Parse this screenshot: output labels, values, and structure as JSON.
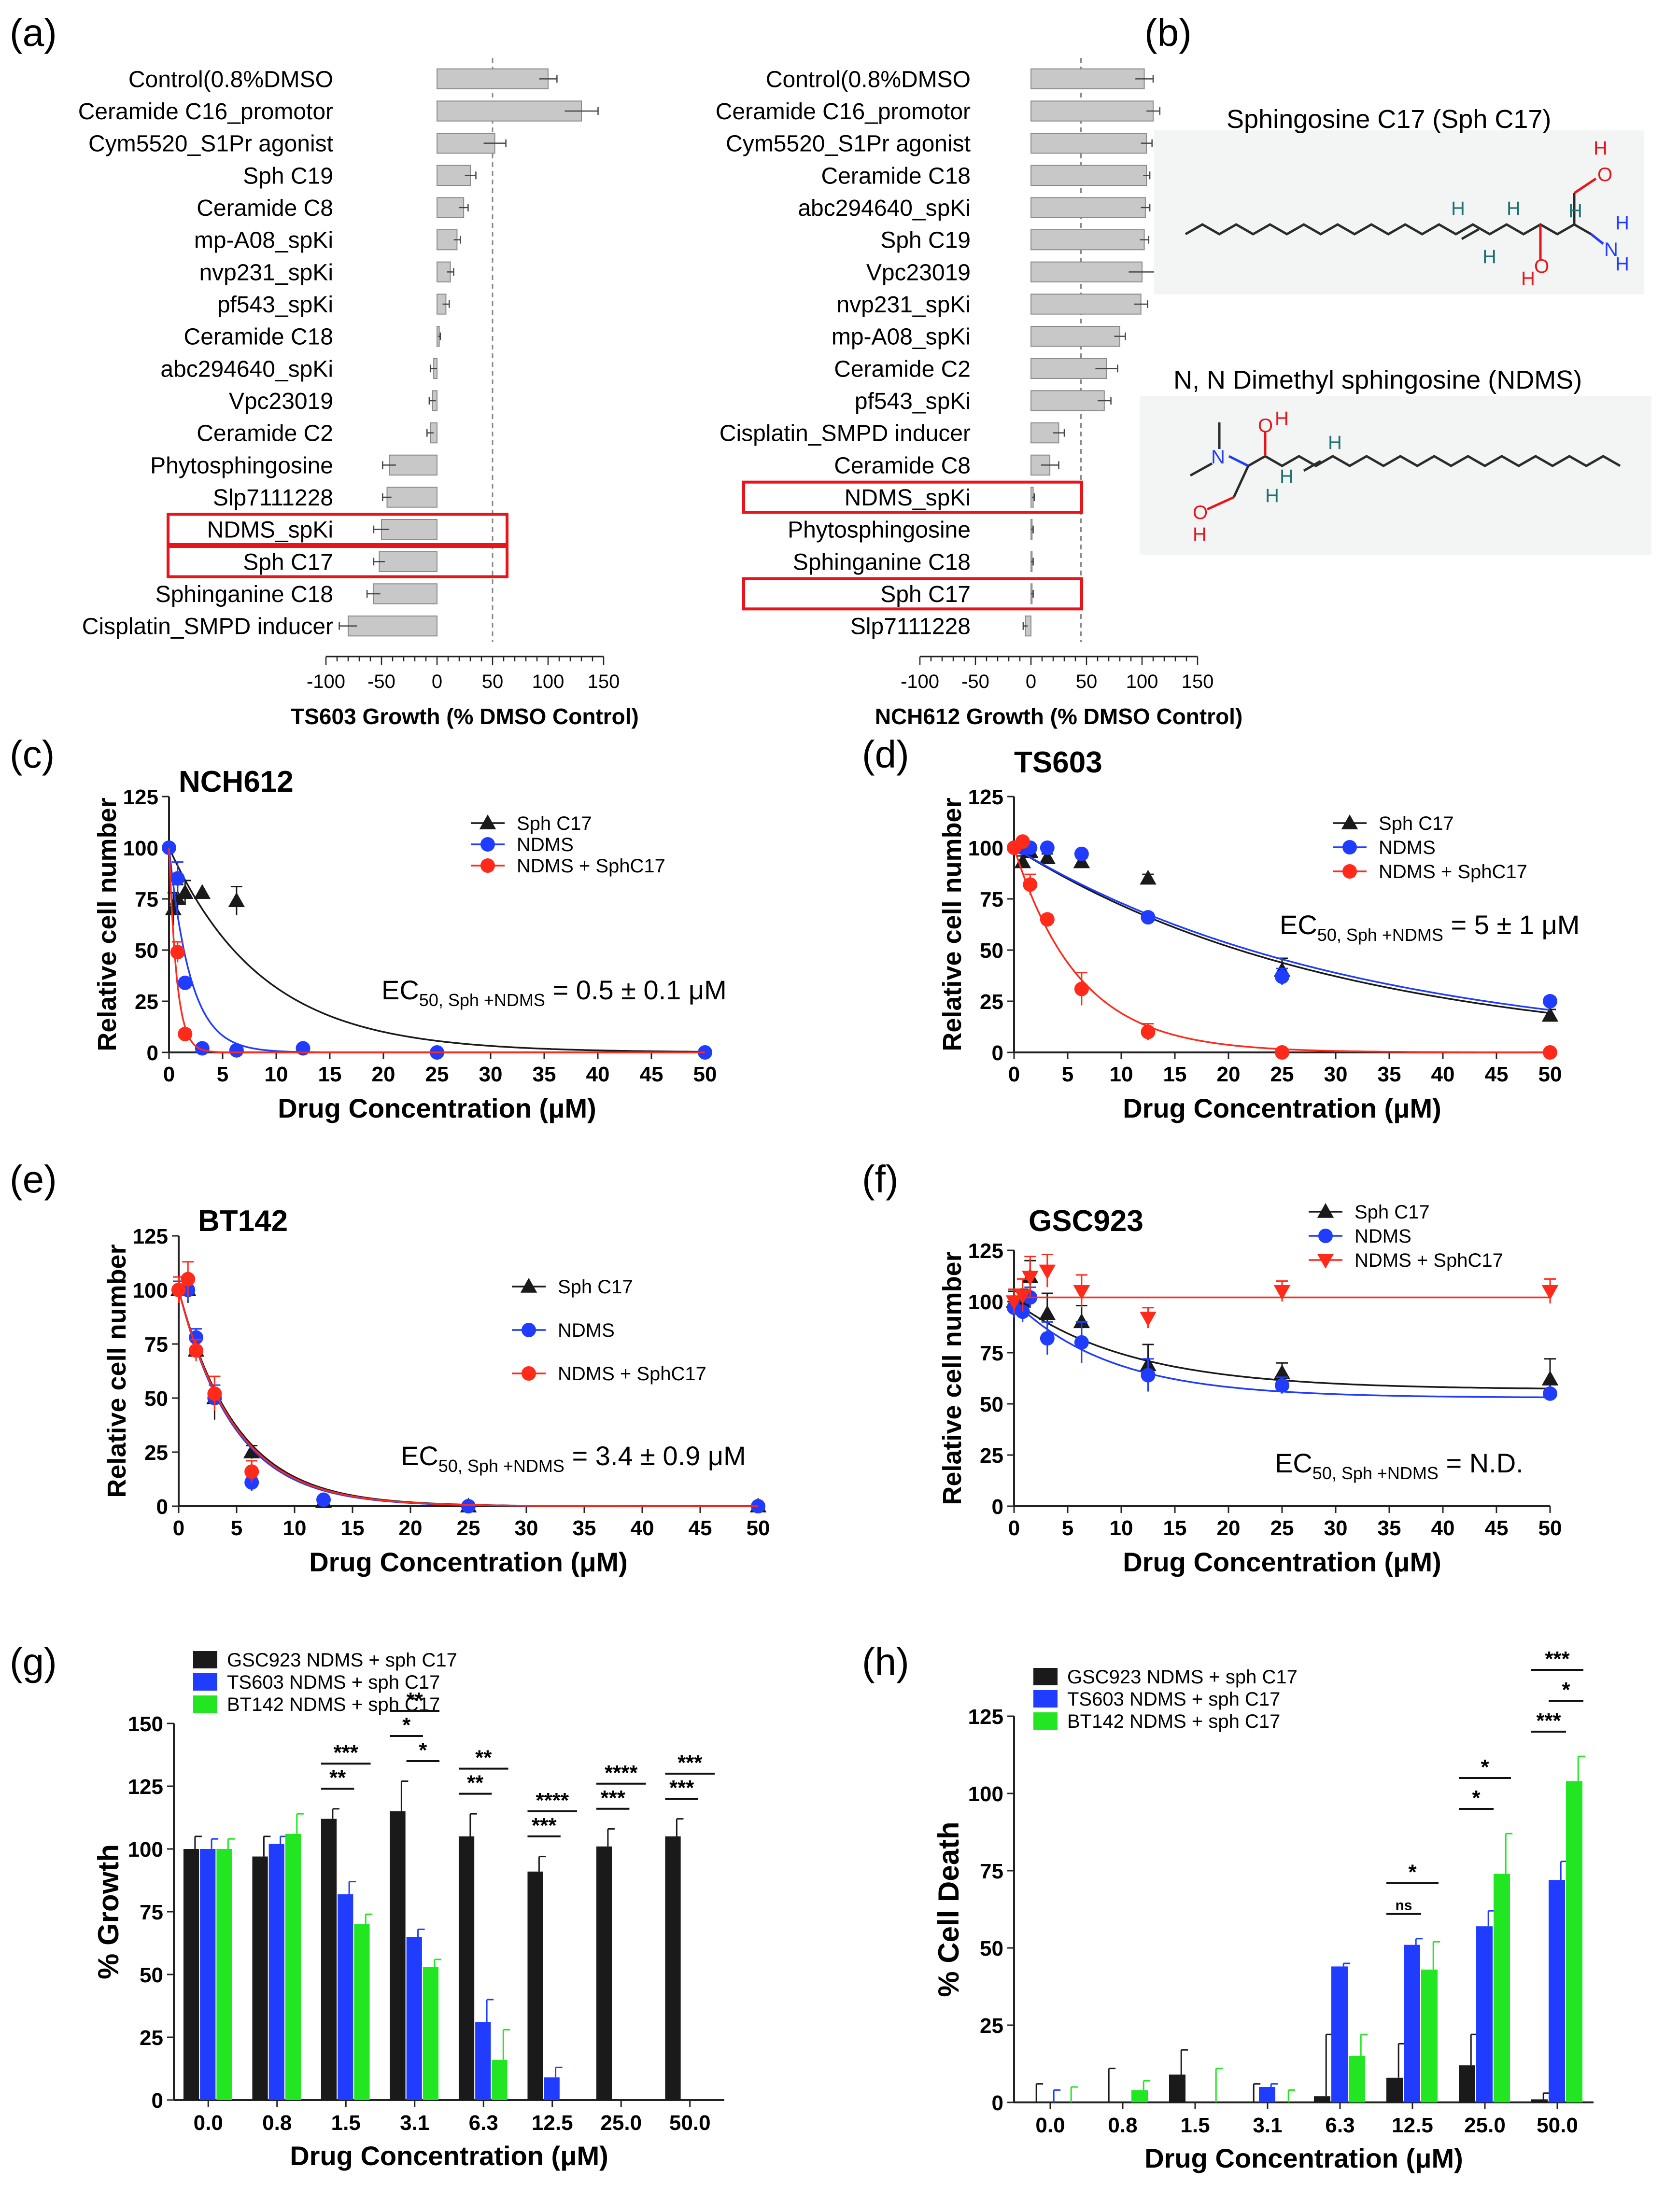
{
  "colors": {
    "bar_gray": "#c8c8c8",
    "black": "#1a1a1a",
    "blue": "#1f3cff",
    "red": "#ff2a1a",
    "green": "#22e622",
    "highlight": "#e8141a"
  },
  "panel_labels": {
    "a": "(a)",
    "b": "(b)",
    "c": "(c)",
    "d": "(d)",
    "e": "(e)",
    "f": "(f)",
    "g": "(g)",
    "h": "(h)"
  },
  "chart_data": [
    {
      "id": "a",
      "type": "bar",
      "orientation": "horizontal",
      "xlabel": "TS603 Growth (% DMSO Control)",
      "xlim": [
        -100,
        150
      ],
      "xticks": [
        -100,
        -50,
        0,
        50,
        100,
        150
      ],
      "reference_line": 50,
      "categories": [
        "Control(0.8%DMSO",
        "Ceramide C16_promotor",
        "Cym5520_S1Pr agonist",
        "Sph C19",
        "Ceramide C8",
        "mp-A08_spKi",
        "nvp231_spKi",
        "pf543_spKi",
        "Ceramide C18",
        "abc294640_spKi",
        "Vpc23019",
        "Ceramide C2",
        "Phytosphingosine",
        "Slp7111228",
        "NDMS_spKi",
        "Sph C17",
        "Sphinganine C18",
        "Cisplatin_SMPD inducer"
      ],
      "values": [
        100,
        130,
        52,
        30,
        24,
        18,
        12,
        8,
        2,
        -3,
        -4,
        -6,
        -43,
        -45,
        -50,
        -52,
        -57,
        -80
      ],
      "errors": [
        8,
        15,
        10,
        5,
        4,
        3,
        3,
        3,
        1,
        3,
        3,
        3,
        6,
        4,
        7,
        5,
        6,
        8
      ],
      "highlighted": [
        "NDMS_spKi",
        "Sph C17"
      ]
    },
    {
      "id": "a2",
      "type": "bar",
      "orientation": "horizontal",
      "xlabel": "NCH612 Growth (% DMSO Control)",
      "xlim": [
        -100,
        150
      ],
      "xticks": [
        -100,
        -50,
        0,
        50,
        100,
        150
      ],
      "reference_line": 45,
      "categories": [
        "Control(0.8%DMSO",
        "Ceramide C16_promotor",
        "Cym5520_S1Pr agonist",
        "Ceramide C18",
        "abc294640_spKi",
        "Sph C19",
        "Vpc23019",
        "nvp231_spKi",
        "mp-A08_spKi",
        "Ceramide C2",
        "pf543_spKi",
        "Cisplatin_SMPD inducer",
        "Ceramide C8",
        "NDMS_spKi",
        "Phytosphingosine",
        "Sphinganine C18",
        "Sph C17",
        "Slp7111228"
      ],
      "values": [
        102,
        110,
        104,
        104,
        103,
        102,
        100,
        99,
        80,
        68,
        66,
        25,
        17,
        2,
        1,
        1,
        1,
        -5
      ],
      "errors": [
        8,
        6,
        5,
        3,
        4,
        4,
        12,
        6,
        5,
        10,
        6,
        5,
        8,
        1,
        1,
        1,
        1,
        2
      ],
      "highlighted": [
        "NDMS_spKi",
        "Sph C17"
      ]
    },
    {
      "id": "c",
      "type": "scatter",
      "title": "NCH612",
      "xlabel": "Drug Concentration (μM)",
      "ylabel": "Relative cell number",
      "xlim": [
        0,
        50
      ],
      "ylim": [
        0,
        125
      ],
      "xticks": [
        0,
        5,
        10,
        15,
        20,
        25,
        30,
        35,
        40,
        45,
        50
      ],
      "yticks": [
        0,
        25,
        50,
        75,
        100,
        125
      ],
      "annotation": {
        "prefix": "EC",
        "sub": "50, Sph +NDMS",
        "suffix": " = 0.5 ± 0.1 μM"
      },
      "series": [
        {
          "name": "Sph C17",
          "color": "black",
          "marker": "triangle",
          "x": [
            0.4,
            0.8,
            1.5,
            3.1,
            6.3
          ],
          "y": [
            70,
            75,
            78,
            78,
            74
          ],
          "err": [
            8,
            7,
            6,
            0,
            7
          ],
          "fit_k": 0.115
        },
        {
          "name": "NDMS",
          "color": "blue",
          "marker": "circle",
          "x": [
            0,
            0.8,
            1.5,
            3.1,
            6.3,
            12.5,
            25,
            50
          ],
          "y": [
            100,
            85,
            34,
            2,
            1,
            2,
            0,
            0
          ],
          "err": [
            0,
            8,
            0,
            0,
            0,
            0,
            0,
            0
          ],
          "fit_k": 0.5
        },
        {
          "name": "NDMS + SphC17",
          "color": "red",
          "marker": "circle",
          "x": [
            0.8,
            1.5
          ],
          "y": [
            49,
            9
          ],
          "err": [
            5,
            2
          ],
          "fit_k": 1.4
        }
      ]
    },
    {
      "id": "d",
      "type": "scatter",
      "title": "TS603",
      "xlabel": "Drug Concentration (μM)",
      "ylabel": "Relative cell number",
      "xlim": [
        0,
        50
      ],
      "ylim": [
        0,
        125
      ],
      "xticks": [
        0,
        5,
        10,
        15,
        20,
        25,
        30,
        35,
        40,
        45,
        50
      ],
      "yticks": [
        0,
        25,
        50,
        75,
        100,
        125
      ],
      "annotation": {
        "prefix": "EC",
        "sub": "50, Sph +NDMS",
        "suffix": " = 5 ± 1 μM"
      },
      "series": [
        {
          "name": "Sph C17",
          "color": "black",
          "marker": "triangle",
          "x": [
            0.8,
            1.5,
            3.1,
            6.3,
            12.5,
            25,
            50
          ],
          "y": [
            93,
            98,
            95,
            93,
            85,
            40,
            18
          ],
          "err": [
            3,
            2,
            2,
            2,
            2,
            6,
            3
          ],
          "fit_k": 0.033
        },
        {
          "name": "NDMS",
          "color": "blue",
          "marker": "circle",
          "x": [
            0,
            0.8,
            1.5,
            3.1,
            6.3,
            12.5,
            25,
            50
          ],
          "y": [
            100,
            100,
            100,
            100,
            97,
            66,
            37,
            25
          ],
          "err": [
            0,
            2,
            2,
            2,
            2,
            2,
            4,
            2
          ],
          "fit_k": 0.0315
        },
        {
          "name": "NDMS + SphC17",
          "color": "red",
          "marker": "circle",
          "x": [
            0,
            0.8,
            1.5,
            3.1,
            6.3,
            12.5,
            25,
            50
          ],
          "y": [
            100,
            103,
            82,
            65,
            31,
            10,
            0,
            0
          ],
          "err": [
            0,
            0,
            5,
            0,
            8,
            4,
            0,
            0
          ],
          "fit_k": 0.165
        }
      ]
    },
    {
      "id": "e",
      "type": "scatter",
      "title": "BT142",
      "xlabel": "Drug Concentration (μM)",
      "ylabel": "Relative cell number",
      "xlim": [
        0,
        50
      ],
      "ylim": [
        0,
        125
      ],
      "xticks": [
        0,
        5,
        10,
        15,
        20,
        25,
        30,
        35,
        40,
        45,
        50
      ],
      "yticks": [
        0,
        25,
        50,
        75,
        100,
        125
      ],
      "annotation": {
        "prefix": "EC",
        "sub": "50, Sph +NDMS",
        "suffix": " = 3.4 ± 0.9 μM"
      },
      "series": [
        {
          "name": "Sph C17",
          "color": "black",
          "marker": "triangle",
          "x": [
            0,
            0.8,
            1.5,
            3.1,
            6.3,
            12.5,
            25,
            50
          ],
          "y": [
            100,
            100,
            72,
            50,
            25,
            2,
            0,
            0
          ],
          "err": [
            4,
            6,
            5,
            10,
            3,
            0,
            0,
            0
          ],
          "fit_k": 0.2
        },
        {
          "name": "NDMS",
          "color": "blue",
          "marker": "circle",
          "x": [
            0,
            0.8,
            1.5,
            3.1,
            6.3,
            12.5,
            25,
            50
          ],
          "y": [
            100,
            100,
            78,
            50,
            11,
            3,
            0,
            0
          ],
          "err": [
            4,
            5,
            4,
            6,
            4,
            0,
            0,
            0
          ],
          "fit_k": 0.21
        },
        {
          "name": "NDMS + SphC17",
          "color": "red",
          "marker": "circle",
          "x": [
            0,
            0.8,
            1.5,
            3.1,
            6.3
          ],
          "y": [
            100,
            105,
            72,
            52,
            16
          ],
          "err": [
            6,
            8,
            5,
            8,
            5
          ],
          "fit_k": 0.205
        }
      ]
    },
    {
      "id": "f",
      "type": "scatter",
      "title": "GSC923",
      "xlabel": "Drug Concentration (μM)",
      "ylabel": "Relative cell number",
      "xlim": [
        0,
        50
      ],
      "ylim": [
        0,
        125
      ],
      "xticks": [
        0,
        5,
        10,
        15,
        20,
        25,
        30,
        35,
        40,
        45,
        50
      ],
      "yticks": [
        0,
        25,
        50,
        75,
        100,
        125
      ],
      "annotation": {
        "prefix": "EC",
        "sub": "50, Sph +NDMS",
        "suffix": " = N.D."
      },
      "series": [
        {
          "name": "Sph C17",
          "color": "black",
          "marker": "triangle",
          "x": [
            0,
            0.8,
            1.5,
            3.1,
            6.3,
            12.5,
            25,
            50
          ],
          "y": [
            100,
            100,
            112,
            94,
            90,
            69,
            65,
            62
          ],
          "err": [
            5,
            6,
            8,
            10,
            8,
            10,
            5,
            10
          ],
          "plateau": 57,
          "fit_k": 0.09
        },
        {
          "name": "NDMS",
          "color": "blue",
          "marker": "circle",
          "x": [
            0,
            0.8,
            1.5,
            3.1,
            6.3,
            12.5,
            25,
            50
          ],
          "y": [
            97,
            95,
            102,
            82,
            80,
            64,
            59,
            55
          ],
          "err": [
            5,
            5,
            5,
            8,
            10,
            8,
            4,
            2
          ],
          "plateau": 53,
          "fit_k": 0.11
        },
        {
          "name": "NDMS + SphC17",
          "color": "red",
          "marker": "triangle-down",
          "x": [
            0,
            0.8,
            1.5,
            3.1,
            6.3,
            12.5,
            25,
            50
          ],
          "y": [
            100,
            103,
            112,
            115,
            105,
            92,
            105,
            105
          ],
          "err": [
            6,
            8,
            10,
            8,
            8,
            5,
            5,
            6
          ],
          "flat": 102
        }
      ]
    },
    {
      "id": "g",
      "type": "bar",
      "xlabel": "Drug Concentration (μM)",
      "ylabel": "% Growth",
      "ylim": [
        0,
        150
      ],
      "yticks": [
        0,
        25,
        50,
        75,
        100,
        125,
        150
      ],
      "categories": [
        "0.0",
        "0.8",
        "1.5",
        "3.1",
        "6.3",
        "12.5",
        "25.0",
        "50.0"
      ],
      "series": [
        {
          "name": "GSC923 NDMS + sph C17",
          "color": "black",
          "values": [
            100,
            97,
            112,
            115,
            105,
            91,
            101,
            105
          ],
          "err": [
            5,
            8,
            4,
            12,
            9,
            6,
            7,
            7
          ]
        },
        {
          "name": "TS603 NDMS + sph C17",
          "color": "blue",
          "values": [
            100,
            102,
            82,
            65,
            31,
            9,
            0,
            0
          ],
          "err": [
            4,
            3,
            5,
            3,
            9,
            4,
            0,
            0
          ]
        },
        {
          "name": "BT142 NDMS + sph C17",
          "color": "green",
          "values": [
            100,
            106,
            70,
            53,
            16,
            0,
            0,
            0
          ],
          "err": [
            4,
            8,
            4,
            3,
            12,
            0,
            0,
            0
          ]
        }
      ],
      "significance": [
        {
          "cat": 1.5,
          "lines": [
            [
              "GSC923",
              "BT142",
              "***"
            ],
            [
              "GSC923",
              "TS603",
              "**"
            ]
          ]
        },
        {
          "cat": 3.1,
          "lines": [
            [
              "GSC923",
              "BT142",
              "**"
            ],
            [
              "GSC923",
              "TS603",
              "*"
            ],
            [
              "TS603",
              "BT142",
              "*"
            ]
          ]
        },
        {
          "cat": 6.3,
          "lines": [
            [
              "GSC923",
              "BT142",
              "**"
            ],
            [
              "GSC923",
              "TS603",
              "**"
            ]
          ]
        },
        {
          "cat": 12.5,
          "lines": [
            [
              "GSC923",
              "BT142",
              "****"
            ],
            [
              "GSC923",
              "TS603",
              "***"
            ]
          ]
        },
        {
          "cat": 25.0,
          "lines": [
            [
              "GSC923",
              "BT142",
              "****"
            ],
            [
              "GSC923",
              "TS603",
              "***"
            ]
          ]
        },
        {
          "cat": 50.0,
          "lines": [
            [
              "GSC923",
              "BT142",
              "***"
            ],
            [
              "GSC923",
              "TS603",
              "***"
            ]
          ]
        }
      ]
    },
    {
      "id": "h",
      "type": "bar",
      "xlabel": "Drug Concentration (μM)",
      "ylabel": "% Cell Death",
      "ylim": [
        0,
        125
      ],
      "yticks": [
        0,
        25,
        50,
        75,
        100,
        125
      ],
      "categories": [
        "0.0",
        "0.8",
        "1.5",
        "3.1",
        "6.3",
        "12.5",
        "25.0",
        "50.0"
      ],
      "series": [
        {
          "name": "GSC923 NDMS + sph C17",
          "color": "black",
          "values": [
            0,
            0,
            9,
            0,
            2,
            8,
            12,
            1
          ],
          "err": [
            6,
            11,
            8,
            6,
            20,
            11,
            10,
            2
          ]
        },
        {
          "name": "TS603 NDMS + sph C17",
          "color": "blue",
          "values": [
            0,
            0,
            0,
            5,
            44,
            51,
            57,
            72
          ],
          "err": [
            4,
            0,
            0,
            1,
            1,
            2,
            5,
            6
          ]
        },
        {
          "name": "BT142 NDMS + sph C17",
          "color": "green",
          "values": [
            0,
            4,
            0,
            0,
            15,
            43,
            74,
            104
          ],
          "err": [
            5,
            3,
            11,
            4,
            7,
            9,
            13,
            8
          ]
        }
      ],
      "significance": [
        {
          "cat": 12.5,
          "lines": [
            [
              "GSC923",
              "BT142",
              "*"
            ],
            [
              "GSC923",
              "TS603",
              "ns"
            ]
          ]
        },
        {
          "cat": 25.0,
          "lines": [
            [
              "GSC923",
              "BT142",
              "*"
            ],
            [
              "GSC923",
              "TS603",
              "*"
            ]
          ]
        },
        {
          "cat": 50.0,
          "lines": [
            [
              "GSC923",
              "BT142",
              "***"
            ],
            [
              "TS603",
              "BT142",
              "*"
            ],
            [
              "GSC923",
              "TS603",
              "***"
            ]
          ]
        }
      ]
    }
  ],
  "structures": {
    "sph_c17_title": "Sphingosine C17 (Sph C17)",
    "ndms_title": "N, N Dimethyl sphingosine (NDMS)",
    "atoms": {
      "H": "H",
      "O": "O",
      "N": "N"
    }
  }
}
